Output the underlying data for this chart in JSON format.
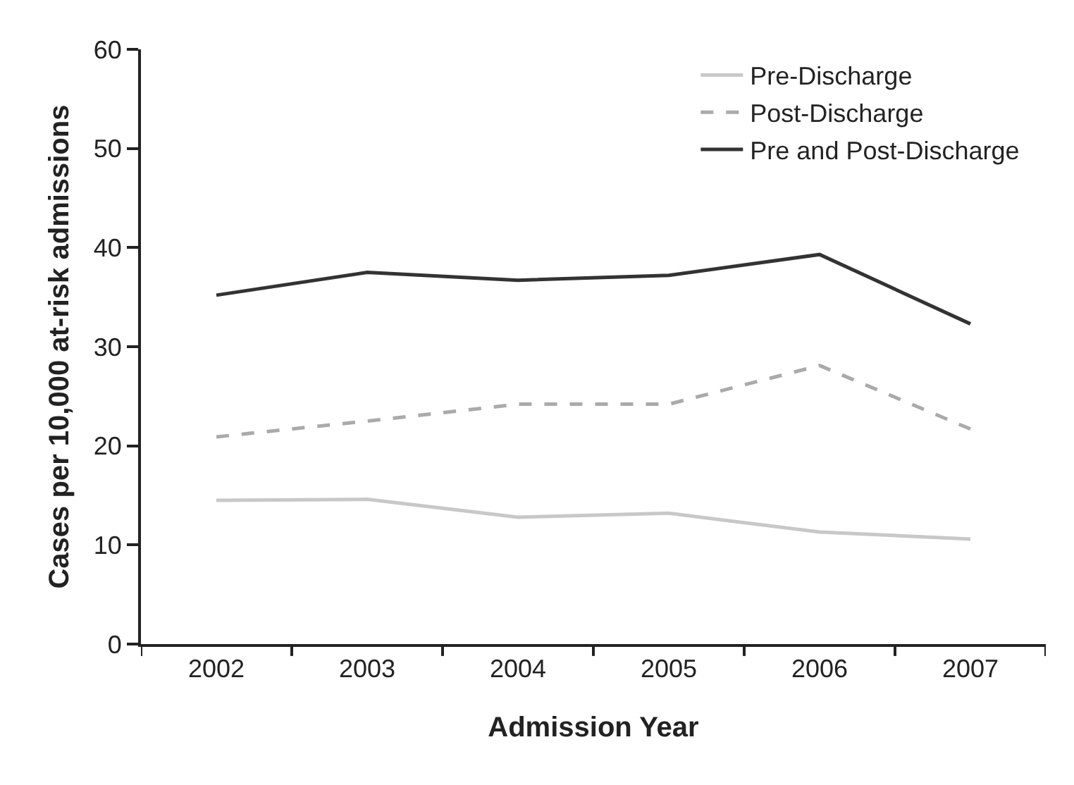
{
  "chart_data": {
    "type": "line",
    "xlabel": "Admission Year",
    "ylabel": "Cases per 10,000 at-risk admissions",
    "categories": [
      "2002",
      "2003",
      "2004",
      "2005",
      "2006",
      "2007"
    ],
    "series": [
      {
        "name": "Pre-Discharge",
        "color": "#c8c8c8",
        "line_style": "solid",
        "values": [
          14.5,
          14.6,
          12.8,
          13.2,
          11.3,
          10.6
        ]
      },
      {
        "name": "Post-Discharge",
        "color": "#aaaaaa",
        "line_style": "dashed",
        "values": [
          20.9,
          22.5,
          24.2,
          24.2,
          28.1,
          21.7
        ]
      },
      {
        "name": "Pre and Post-Discharge",
        "color": "#333333",
        "line_style": "solid",
        "values": [
          35.2,
          37.5,
          36.7,
          37.2,
          39.3,
          32.3
        ]
      }
    ],
    "ylim": [
      0,
      60
    ],
    "yticks": [
      0,
      10,
      20,
      30,
      40,
      50,
      60
    ],
    "grid": false,
    "legend": "top right",
    "marker": "none"
  }
}
